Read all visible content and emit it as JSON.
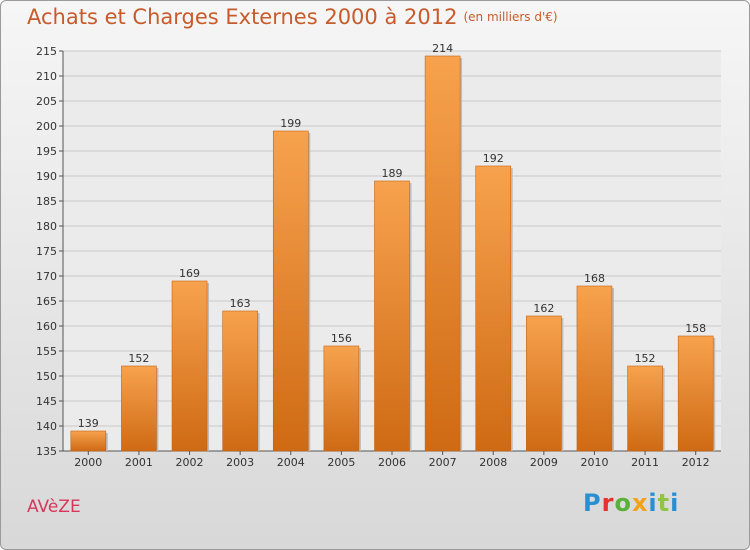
{
  "chart_data": {
    "type": "bar",
    "title": "Achats et Charges Externes 2000 à 2012",
    "subtitle": "(en milliers d'€)",
    "categories": [
      "2000",
      "2001",
      "2002",
      "2003",
      "2004",
      "2005",
      "2006",
      "2007",
      "2008",
      "2009",
      "2010",
      "2011",
      "2012"
    ],
    "values": [
      139,
      152,
      169,
      163,
      199,
      156,
      189,
      214,
      192,
      162,
      168,
      152,
      158
    ],
    "ylim": [
      135,
      215
    ],
    "yticks": [
      135,
      140,
      145,
      150,
      155,
      160,
      165,
      170,
      175,
      180,
      185,
      190,
      195,
      200,
      205,
      210,
      215
    ],
    "grid": true,
    "legend": "none",
    "colors": {
      "bar_light": "#f7a24e",
      "bar_dark": "#cf6a14",
      "grid": "#c8c8c8"
    }
  },
  "footer": {
    "commune": "AVèZE",
    "logo": [
      "P",
      "r",
      "o",
      "x",
      "i",
      "t",
      "i"
    ]
  }
}
